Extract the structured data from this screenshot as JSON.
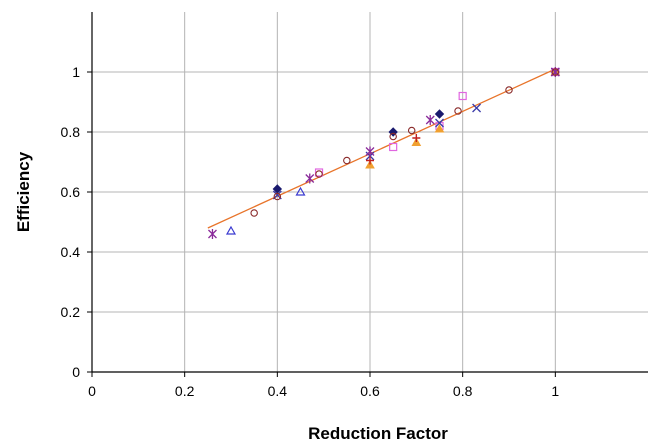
{
  "chart_data": {
    "type": "scatter",
    "title": "",
    "xlabel": "Reduction Factor",
    "ylabel": "Efficiency",
    "xlim": [
      0,
      1.2
    ],
    "ylim": [
      0,
      1.2
    ],
    "x_ticks": [
      0,
      0.2,
      0.4,
      0.6,
      0.8,
      1
    ],
    "x_tick_labels": [
      "0",
      "0.2",
      "0.4",
      "0.6",
      "0.8",
      "1"
    ],
    "y_ticks": [
      0,
      0.2,
      0.4,
      0.6,
      0.8,
      1
    ],
    "y_tick_labels": [
      "0",
      "0.2",
      "0.4",
      "0.6",
      "0.8",
      "1"
    ],
    "grid": true,
    "legend": "none",
    "trendline": {
      "color": "#e8742a",
      "points": [
        {
          "x": 0.25,
          "y": 0.48
        },
        {
          "x": 1.0,
          "y": 1.01
        }
      ]
    },
    "series": [
      {
        "marker": "diamond-filled",
        "color": "#1a1a6e",
        "points": [
          {
            "x": 0.4,
            "y": 0.61
          },
          {
            "x": 0.65,
            "y": 0.8
          },
          {
            "x": 0.75,
            "y": 0.86
          },
          {
            "x": 1.0,
            "y": 1.0
          }
        ]
      },
      {
        "marker": "square-open",
        "color": "#e066e0",
        "points": [
          {
            "x": 0.49,
            "y": 0.665
          },
          {
            "x": 0.65,
            "y": 0.75
          },
          {
            "x": 0.75,
            "y": 0.82
          },
          {
            "x": 0.8,
            "y": 0.92
          },
          {
            "x": 1.0,
            "y": 1.0
          }
        ]
      },
      {
        "marker": "triangle-filled",
        "color": "#f0a030",
        "points": [
          {
            "x": 0.6,
            "y": 0.69
          },
          {
            "x": 0.7,
            "y": 0.765
          },
          {
            "x": 0.75,
            "y": 0.81
          },
          {
            "x": 1.0,
            "y": 1.0
          }
        ]
      },
      {
        "marker": "triangle-open",
        "color": "#3a3ad0",
        "points": [
          {
            "x": 0.3,
            "y": 0.47
          },
          {
            "x": 0.45,
            "y": 0.6
          }
        ]
      },
      {
        "marker": "x",
        "color": "#3a3aa8",
        "points": [
          {
            "x": 0.4,
            "y": 0.59
          },
          {
            "x": 0.6,
            "y": 0.72
          },
          {
            "x": 0.75,
            "y": 0.83
          },
          {
            "x": 0.83,
            "y": 0.88
          },
          {
            "x": 1.0,
            "y": 1.0
          }
        ]
      },
      {
        "marker": "star",
        "color": "#8a2a9a",
        "points": [
          {
            "x": 0.26,
            "y": 0.46
          },
          {
            "x": 0.47,
            "y": 0.645
          },
          {
            "x": 0.6,
            "y": 0.735
          },
          {
            "x": 0.73,
            "y": 0.84
          },
          {
            "x": 1.0,
            "y": 1.0
          }
        ]
      },
      {
        "marker": "circle-open",
        "color": "#8a2a2a",
        "points": [
          {
            "x": 0.35,
            "y": 0.53
          },
          {
            "x": 0.4,
            "y": 0.585
          },
          {
            "x": 0.49,
            "y": 0.66
          },
          {
            "x": 0.55,
            "y": 0.705
          },
          {
            "x": 0.65,
            "y": 0.785
          },
          {
            "x": 0.69,
            "y": 0.805
          },
          {
            "x": 0.79,
            "y": 0.87
          },
          {
            "x": 0.9,
            "y": 0.94
          },
          {
            "x": 1.0,
            "y": 1.0
          }
        ]
      },
      {
        "marker": "plus",
        "color": "#c02020",
        "points": [
          {
            "x": 0.6,
            "y": 0.705
          },
          {
            "x": 0.7,
            "y": 0.78
          }
        ]
      }
    ]
  }
}
